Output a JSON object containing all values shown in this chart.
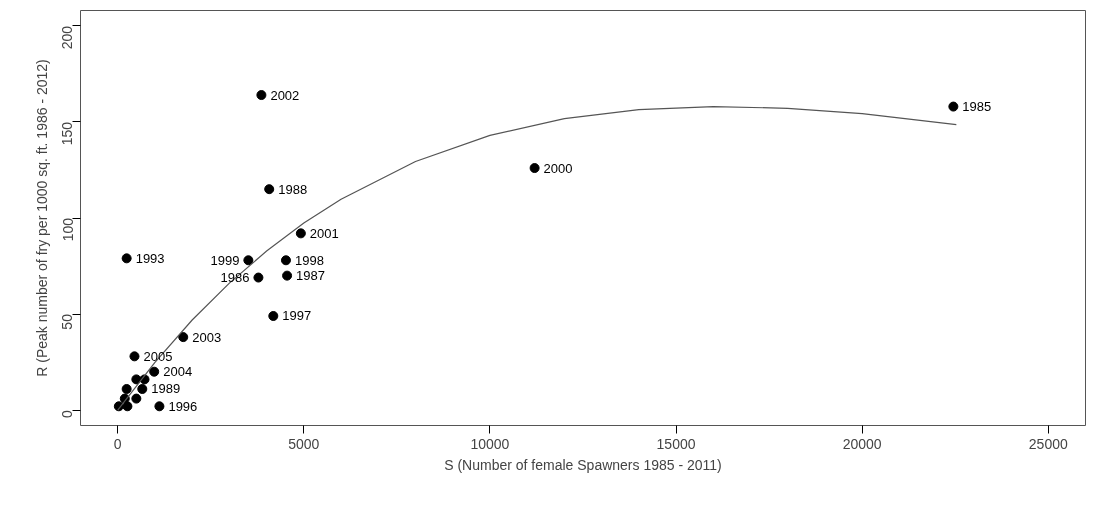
{
  "chart_data": {
    "type": "scatter",
    "xlabel": "S (Number of female Spawners 1985 - 2011)",
    "ylabel": "R (Peak number of fry per 1000 sq. ft. 1986 - 2012)",
    "xlim": [
      -1000,
      26000
    ],
    "ylim": [
      -8,
      208
    ],
    "xticks": [
      0,
      5000,
      10000,
      15000,
      20000,
      25000
    ],
    "yticks": [
      0,
      50,
      100,
      150,
      200
    ],
    "grid": false,
    "series": [
      {
        "color": "#000000",
        "marker": "circle",
        "x": [
          22450,
          3860,
          11200,
          4070,
          4920,
          3510,
          4520,
          3780,
          4550,
          4180,
          240,
          1760,
          450,
          980,
          720,
          500,
          660,
          240,
          190,
          500,
          30,
          260,
          1120
        ],
        "values": [
          158,
          164,
          126,
          115,
          92,
          78,
          78,
          69,
          70,
          49,
          79,
          38,
          28,
          20,
          16,
          16,
          11,
          11,
          6,
          6,
          2,
          2,
          2
        ]
      },
      {
        "type": "line",
        "color": "#555555",
        "line_style": "solid",
        "x": [
          0,
          1000,
          2000,
          3000,
          4000,
          5000,
          6000,
          8000,
          10000,
          12000,
          14000,
          16000,
          18000,
          20000,
          22530
        ],
        "values": [
          0,
          24.9,
          46.9,
          66.1,
          82.8,
          97.4,
          109.8,
          129.4,
          143.0,
          151.7,
          156.4,
          158.0,
          157.1,
          154.3,
          148.6
        ]
      }
    ],
    "annotations": [
      {
        "text": "1985",
        "x": 22450,
        "y": 158
      },
      {
        "text": "2002",
        "x": 3860,
        "y": 164
      },
      {
        "text": "2000",
        "x": 11200,
        "y": 126
      },
      {
        "text": "1988",
        "x": 4070,
        "y": 115
      },
      {
        "text": "2001",
        "x": 4920,
        "y": 92
      },
      {
        "text": "1999",
        "x": 3510,
        "y": 78
      },
      {
        "text": "1998",
        "x": 4520,
        "y": 78
      },
      {
        "text": "1986",
        "x": 3780,
        "y": 69
      },
      {
        "text": "1987",
        "x": 4550,
        "y": 70
      },
      {
        "text": "1997",
        "x": 4180,
        "y": 49
      },
      {
        "text": "1993",
        "x": 240,
        "y": 79
      },
      {
        "text": "2003",
        "x": 1760,
        "y": 38
      },
      {
        "text": "2005",
        "x": 450,
        "y": 28
      },
      {
        "text": "2004",
        "x": 980,
        "y": 20
      },
      {
        "text": "1989",
        "x": 660,
        "y": 11
      },
      {
        "text": "1996",
        "x": 1120,
        "y": 2
      }
    ]
  }
}
